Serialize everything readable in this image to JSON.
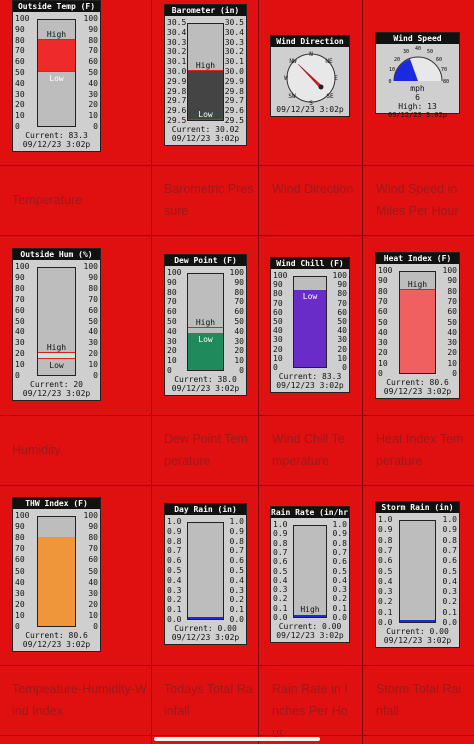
{
  "app": {
    "background": "#e01010",
    "grid_color": "#7a0a0a",
    "caption_color": "#9a1a1a"
  },
  "colors": {
    "outside_temp_fill": "#ef2a2a",
    "barometer_fill": "#444444",
    "humidity_fill": "#b8f0e0",
    "dew_point_fill": "#1f8a5b",
    "wind_chill_fill": "#6a2cc8",
    "heat_index_fill": "#f06060",
    "thw_fill": "#f0963a",
    "compass_needle": "#d42020",
    "speed_fill": "#1a2ae0"
  },
  "rows": [
    {
      "captions": [
        "Temperature",
        "Barometric Pressure",
        "Wind Direction",
        "Wind Speed in Miles Per Hour"
      ],
      "widgets": {
        "outside_temp": {
          "title": "Outside Temp (F)",
          "left_ticks": [
            "100",
            "90",
            "80",
            "70",
            "60",
            "50",
            "40",
            "30",
            "20",
            "10",
            "0"
          ],
          "right_ticks": [
            "100",
            "90",
            "80",
            "70",
            "60",
            "50",
            "40",
            "30",
            "20",
            "10",
            "0"
          ],
          "fill_top": 80,
          "fill_bottom": 50,
          "high_label": "High",
          "low_label": "Low",
          "current": "Current: 83.3",
          "timestamp": "09/12/23  3:02p"
        },
        "barometer": {
          "title": "Barometer (in)",
          "left_ticks": [
            "30.5",
            "30.4",
            "30.3",
            "30.2",
            "30.1",
            "30.0",
            "29.9",
            "29.8",
            "29.7",
            "29.6",
            "29.5"
          ],
          "right_ticks": [
            "30.5",
            "30.4",
            "30.3",
            "30.2",
            "30.1",
            "30.0",
            "29.9",
            "29.8",
            "29.7",
            "29.6",
            "29.5"
          ],
          "fill_top": 30.0,
          "fill_bottom": 29.5,
          "high_label": "High",
          "low_label": "Low",
          "current": "Current: 30.02",
          "timestamp": "09/12/23  3:02p"
        },
        "wind_direction": {
          "title": "Wind Direction",
          "compass": [
            "N",
            "NE",
            "E",
            "SE",
            "S",
            "SW",
            "W",
            "NW"
          ],
          "needle_deg": 315,
          "timestamp": "09/12/23  3:02p"
        },
        "wind_speed": {
          "title": "Wind Speed",
          "ticks": [
            "0",
            "10",
            "20",
            "30",
            "40",
            "50",
            "60",
            "70",
            "80"
          ],
          "unit": "mph",
          "value": 6,
          "value_label": "6",
          "high": "High: 13",
          "timestamp": "09/12/23  3:02p"
        }
      }
    },
    {
      "captions": [
        "Humidity",
        "Dew Point Temperature",
        "Wind Chill Temperature",
        "Heat Index Temperature"
      ],
      "widgets": {
        "outside_hum": {
          "title": "Outside Hum (%)",
          "left_ticks": [
            "100",
            "90",
            "80",
            "70",
            "60",
            "50",
            "40",
            "30",
            "20",
            "10",
            "0"
          ],
          "right_ticks": [
            "100",
            "90",
            "80",
            "70",
            "60",
            "50",
            "40",
            "30",
            "20",
            "10",
            "0"
          ],
          "fill_top": 20,
          "fill_bottom": 15,
          "high_label": "High",
          "low_label": "Low",
          "current": "Current: 20",
          "timestamp": "09/12/23  3:02p"
        },
        "dew_point": {
          "title": "Dew Point (F)",
          "left_ticks": [
            "100",
            "90",
            "80",
            "70",
            "60",
            "50",
            "40",
            "30",
            "20",
            "10",
            "0"
          ],
          "right_ticks": [
            "100",
            "90",
            "80",
            "70",
            "60",
            "50",
            "40",
            "30",
            "20",
            "10",
            "0"
          ],
          "fill_top": 38,
          "fill_bottom": 0,
          "mark": 43,
          "high_label": "High",
          "low_label": "Low",
          "current": "Current: 38.0",
          "timestamp": "09/12/23  3:02p"
        },
        "wind_chill": {
          "title": "Wind Chill (F)",
          "left_ticks": [
            "100",
            "90",
            "80",
            "70",
            "60",
            "50",
            "40",
            "30",
            "20",
            "10",
            "0"
          ],
          "right_ticks": [
            "100",
            "90",
            "80",
            "70",
            "60",
            "50",
            "40",
            "30",
            "20",
            "10",
            "0"
          ],
          "fill_top": 83.3,
          "fill_bottom": 0,
          "low_label": "Low",
          "current": "Current: 83.3",
          "timestamp": "09/12/23  3:02p"
        },
        "heat_index": {
          "title": "Heat Index (F)",
          "left_ticks": [
            "100",
            "90",
            "80",
            "70",
            "60",
            "50",
            "40",
            "30",
            "20",
            "10",
            "0"
          ],
          "right_ticks": [
            "100",
            "90",
            "80",
            "70",
            "60",
            "50",
            "40",
            "30",
            "20",
            "10",
            "0"
          ],
          "fill_top": 80.6,
          "fill_bottom": 0,
          "high_label": "High",
          "current": "Current: 80.6",
          "timestamp": "09/12/23  3:02p"
        }
      }
    },
    {
      "captions": [
        "Tempeature-Humidity-Wind Index",
        "Todays Total Rainfall",
        "Rain Rate in Inches Per Hour",
        "Storm Total Rainfall"
      ],
      "widgets": {
        "thw_index": {
          "title": "THW Index (F)",
          "left_ticks": [
            "100",
            "90",
            "80",
            "70",
            "60",
            "50",
            "40",
            "30",
            "20",
            "10",
            "0"
          ],
          "right_ticks": [
            "100",
            "90",
            "80",
            "70",
            "60",
            "50",
            "40",
            "30",
            "20",
            "10",
            "0"
          ],
          "fill_top": 80.6,
          "fill_bottom": 0,
          "current": "Current: 80.6",
          "timestamp": "09/12/23  3:02p"
        },
        "day_rain": {
          "title": "Day Rain (in)",
          "left_ticks": [
            "1.0",
            "0.9",
            "0.8",
            "0.7",
            "0.6",
            "0.5",
            "0.4",
            "0.3",
            "0.2",
            "0.1",
            "0.0"
          ],
          "right_ticks": [
            "1.0",
            "0.9",
            "0.8",
            "0.7",
            "0.6",
            "0.5",
            "0.4",
            "0.3",
            "0.2",
            "0.1",
            "0.0"
          ],
          "fill_top": 0,
          "fill_bottom": 0,
          "current": "Current: 0.00",
          "timestamp": "09/12/23  3:02p"
        },
        "rain_rate": {
          "title": "Rain Rate (in/hr)",
          "left_ticks": [
            "1.0",
            "0.9",
            "0.8",
            "0.7",
            "0.6",
            "0.5",
            "0.4",
            "0.3",
            "0.2",
            "0.1",
            "0.0"
          ],
          "right_ticks": [
            "1.0",
            "0.9",
            "0.8",
            "0.7",
            "0.6",
            "0.5",
            "0.4",
            "0.3",
            "0.2",
            "0.1",
            "0.0"
          ],
          "fill_top": 0,
          "fill_bottom": 0,
          "high_label": "High",
          "current": "Current: 0.00",
          "timestamp": "09/12/23  3:02p"
        },
        "storm_rain": {
          "title": "Storm Rain (in)",
          "left_ticks": [
            "1.0",
            "0.9",
            "0.8",
            "0.7",
            "0.6",
            "0.5",
            "0.4",
            "0.3",
            "0.2",
            "0.1",
            "0.0"
          ],
          "right_ticks": [
            "1.0",
            "0.9",
            "0.8",
            "0.7",
            "0.6",
            "0.5",
            "0.4",
            "0.3",
            "0.2",
            "0.1",
            "0.0"
          ],
          "fill_top": 0,
          "fill_bottom": 0,
          "current": "Current: 0.00",
          "timestamp": "09/12/23  3:02p"
        }
      }
    }
  ]
}
